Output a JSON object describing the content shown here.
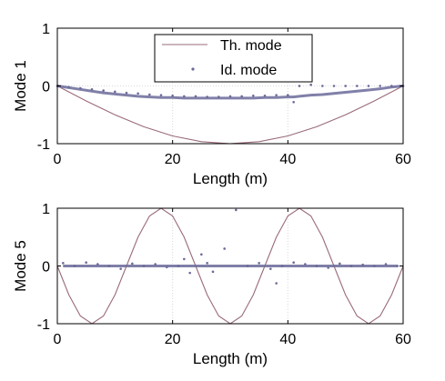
{
  "chart_data": [
    {
      "type": "line",
      "ylabel": "Mode 1",
      "xlabel": "Length (m)",
      "xlim": [
        0,
        60
      ],
      "ylim": [
        -1,
        1
      ],
      "xticks": [
        "0",
        "20",
        "40",
        "60"
      ],
      "yticks": [
        "1",
        "0",
        "-1"
      ],
      "grid": "vertical dotted lines at 20 and 40",
      "legend": {
        "placement": "top-center",
        "entries": [
          {
            "label": "Th. mode",
            "style": "line"
          },
          {
            "label": "Id. mode",
            "style": "dots"
          }
        ]
      },
      "series": [
        {
          "name": "Th. mode",
          "color": "#9a6b7a",
          "x": [
            0,
            5,
            10,
            15,
            20,
            25,
            30,
            35,
            40,
            45,
            50,
            55,
            60
          ],
          "values": [
            0,
            -0.259,
            -0.5,
            -0.707,
            -0.866,
            -0.966,
            -1.0,
            -0.966,
            -0.866,
            -0.707,
            -0.5,
            -0.259,
            0
          ]
        },
        {
          "name": "Id. mode",
          "color": "#6a6a9a",
          "x": [
            0,
            2,
            4,
            6,
            8,
            10,
            12,
            14,
            16,
            18,
            20,
            22,
            24,
            26,
            28,
            30,
            32,
            34,
            36,
            38,
            40,
            41,
            42,
            44,
            46,
            48,
            50,
            52,
            54,
            56,
            58,
            60
          ],
          "values": [
            0,
            -0.02,
            -0.04,
            -0.06,
            -0.08,
            -0.1,
            -0.12,
            -0.13,
            -0.15,
            -0.16,
            -0.17,
            -0.18,
            -0.18,
            -0.19,
            -0.19,
            -0.18,
            -0.18,
            -0.17,
            -0.17,
            -0.16,
            -0.16,
            -0.28,
            0.0,
            0.02,
            0.0,
            0.0,
            0.0,
            0.0,
            0.0,
            0.0,
            0.0,
            0
          ],
          "fit_values": [
            0,
            -0.03,
            -0.06,
            -0.09,
            -0.12,
            -0.14,
            -0.16,
            -0.18,
            -0.19,
            -0.2,
            -0.2,
            -0.21,
            -0.21,
            -0.21,
            -0.21,
            -0.21,
            -0.21,
            -0.21,
            -0.2,
            -0.2,
            -0.19,
            -0.19,
            -0.18,
            -0.16,
            -0.15,
            -0.13,
            -0.11,
            -0.09,
            -0.07,
            -0.05,
            -0.02,
            0
          ]
        }
      ]
    },
    {
      "type": "line",
      "ylabel": "Mode 5",
      "xlabel": "Length (m)",
      "xlim": [
        0,
        60
      ],
      "ylim": [
        -1,
        1
      ],
      "xticks": [
        "0",
        "20",
        "40",
        "60"
      ],
      "yticks": [
        "1",
        "0",
        "-1"
      ],
      "grid": "vertical dotted lines at 20 and 40",
      "series": [
        {
          "name": "Th. mode",
          "color": "#9a6b7a",
          "x": [
            0,
            2,
            4,
            6,
            8,
            10,
            12,
            14,
            16,
            18,
            20,
            22,
            24,
            26,
            28,
            30,
            32,
            34,
            36,
            38,
            40,
            42,
            44,
            46,
            48,
            50,
            52,
            54,
            56,
            58,
            60
          ],
          "values": [
            0,
            -0.5,
            -0.866,
            -1,
            -0.866,
            -0.5,
            0,
            0.5,
            0.866,
            1,
            0.866,
            0.5,
            0,
            -0.5,
            -0.866,
            -1,
            -0.866,
            -0.5,
            0,
            0.5,
            0.866,
            1,
            0.866,
            0.5,
            0,
            -0.5,
            -0.866,
            -1,
            -0.866,
            -0.5,
            0
          ]
        },
        {
          "name": "Id. mode",
          "color": "#6a6a9a",
          "x": [
            1,
            3,
            5,
            7,
            9,
            11,
            13,
            15,
            17,
            19,
            21,
            22,
            23,
            25,
            26,
            27,
            29,
            31,
            33,
            35,
            37,
            38,
            39,
            41,
            43,
            45,
            47,
            49,
            51,
            53,
            55,
            57,
            59
          ],
          "values": [
            0.05,
            0.0,
            0.06,
            0.03,
            0.0,
            -0.05,
            0.04,
            0.0,
            0.03,
            -0.02,
            0.0,
            0.12,
            -0.12,
            0.2,
            0.05,
            -0.1,
            0.3,
            0.97,
            0.0,
            0.05,
            -0.05,
            -0.3,
            0.0,
            0.06,
            0.03,
            0.0,
            -0.03,
            0.04,
            0.0,
            0.02,
            0.0,
            0.03,
            0.0
          ],
          "fit_values": [
            0,
            0,
            0,
            0,
            0,
            0,
            0,
            0,
            0,
            0,
            0,
            0,
            0,
            0,
            0,
            0,
            0,
            0,
            0,
            0,
            0,
            0,
            0,
            0,
            0,
            0,
            0,
            0,
            0,
            0,
            0,
            0,
            0
          ]
        }
      ]
    }
  ],
  "colors": {
    "theoretical": "#9a6b7a",
    "identified": "#6a6a9a",
    "axis": "#000000",
    "grid": "#d8d8d8"
  }
}
